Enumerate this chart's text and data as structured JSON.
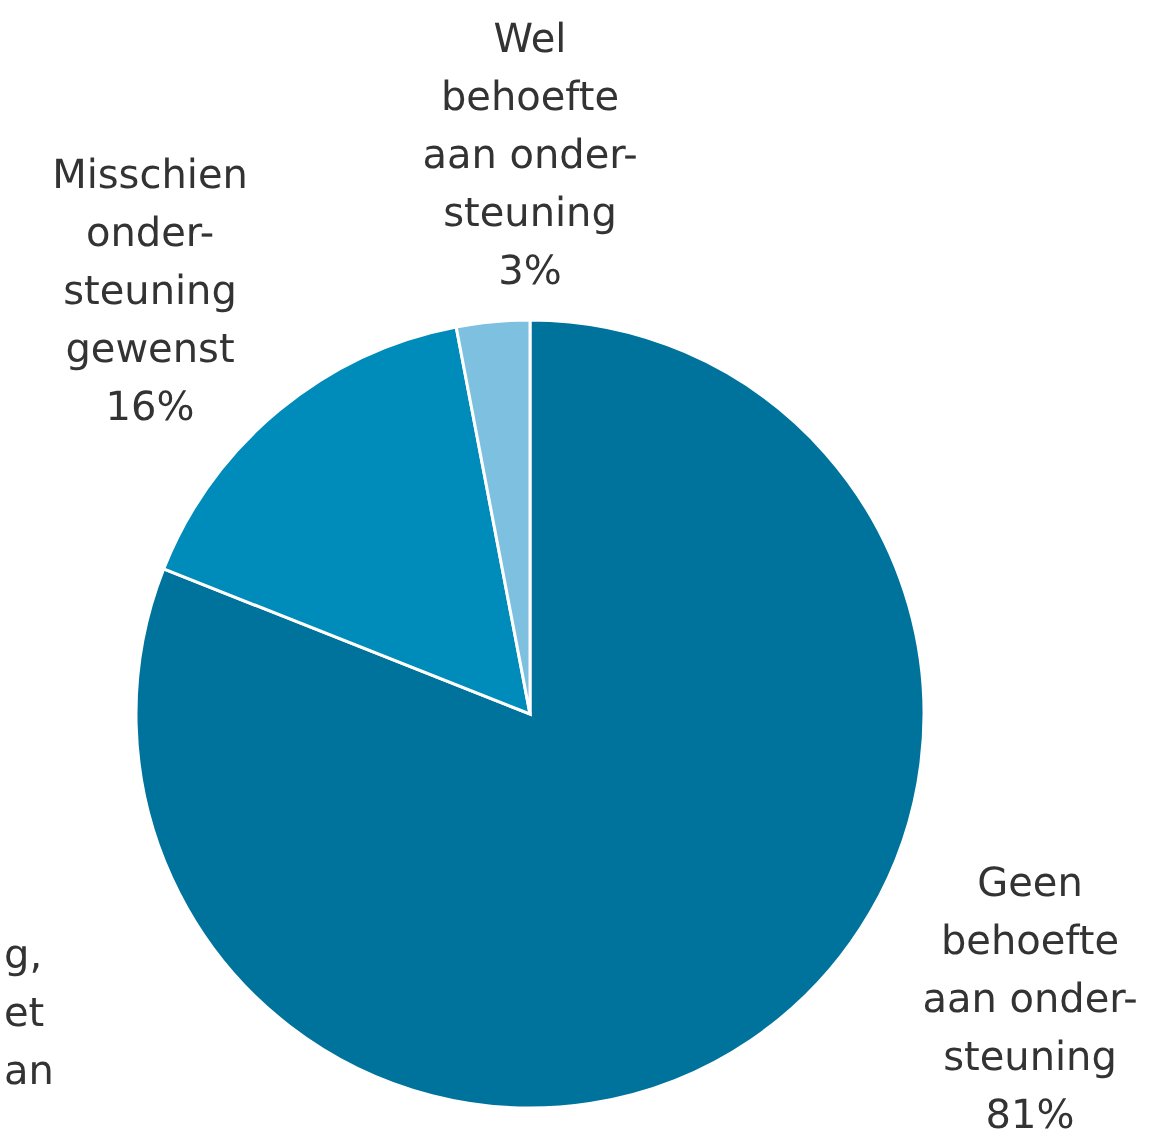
{
  "chart_data": {
    "type": "pie",
    "categories": [
      "Geen\nbehoefte\naan onder-\nsteuning",
      "Misschien\nonder-\nsteuning\ngewenst",
      "Wel\nbehoefte\naan onder-\nsteuning"
    ],
    "values": [
      81,
      16,
      3
    ],
    "value_labels": [
      "81%",
      "16%",
      "3%"
    ],
    "colors": [
      "#00739c",
      "#008cba",
      "#7dc0e0"
    ],
    "annotations": [
      "g,",
      "et",
      "an"
    ]
  }
}
